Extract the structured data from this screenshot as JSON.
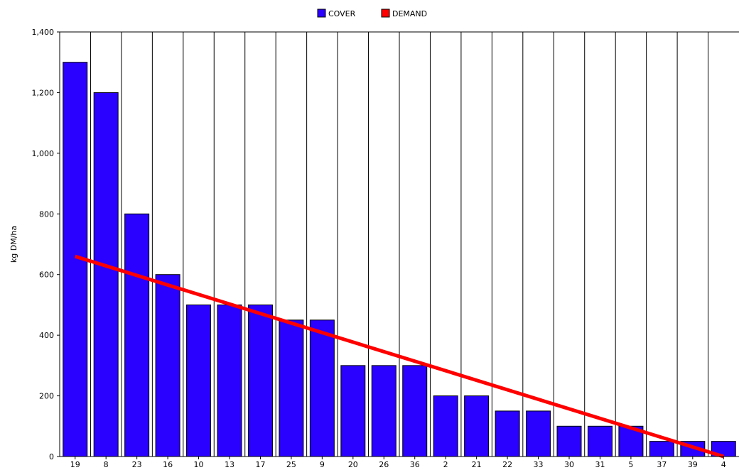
{
  "chart_data": {
    "type": "bar",
    "categories": [
      "19",
      "8",
      "23",
      "16",
      "10",
      "13",
      "17",
      "25",
      "9",
      "20",
      "26",
      "36",
      "2",
      "21",
      "22",
      "33",
      "30",
      "31",
      "5",
      "37",
      "39",
      "4"
    ],
    "series": [
      {
        "name": "COVER",
        "type": "bar",
        "color": "#2a00ff",
        "values": [
          1300,
          1200,
          800,
          600,
          500,
          500,
          500,
          450,
          450,
          300,
          300,
          300,
          200,
          200,
          150,
          150,
          100,
          100,
          100,
          50,
          50,
          50
        ]
      },
      {
        "name": "DEMAND",
        "type": "line",
        "color": "#ff0000",
        "x": [
          "19",
          "4"
        ],
        "values": [
          660,
          0
        ]
      }
    ],
    "xlabel": "",
    "ylabel": "kg DM/ha",
    "ylim": [
      0,
      1400
    ],
    "yticks": [
      0,
      200,
      400,
      600,
      800,
      1000,
      1200,
      1400
    ],
    "ytick_labels": [
      "0",
      "200",
      "400",
      "600",
      "800",
      "1,000",
      "1,200",
      "1,400"
    ],
    "grid": "vertical category separators",
    "legend": "top-center"
  },
  "colors": {
    "bar_fill": "#2a00ff",
    "bar_stroke": "#000000",
    "line": "#ff0000",
    "background": "#ffffff"
  }
}
